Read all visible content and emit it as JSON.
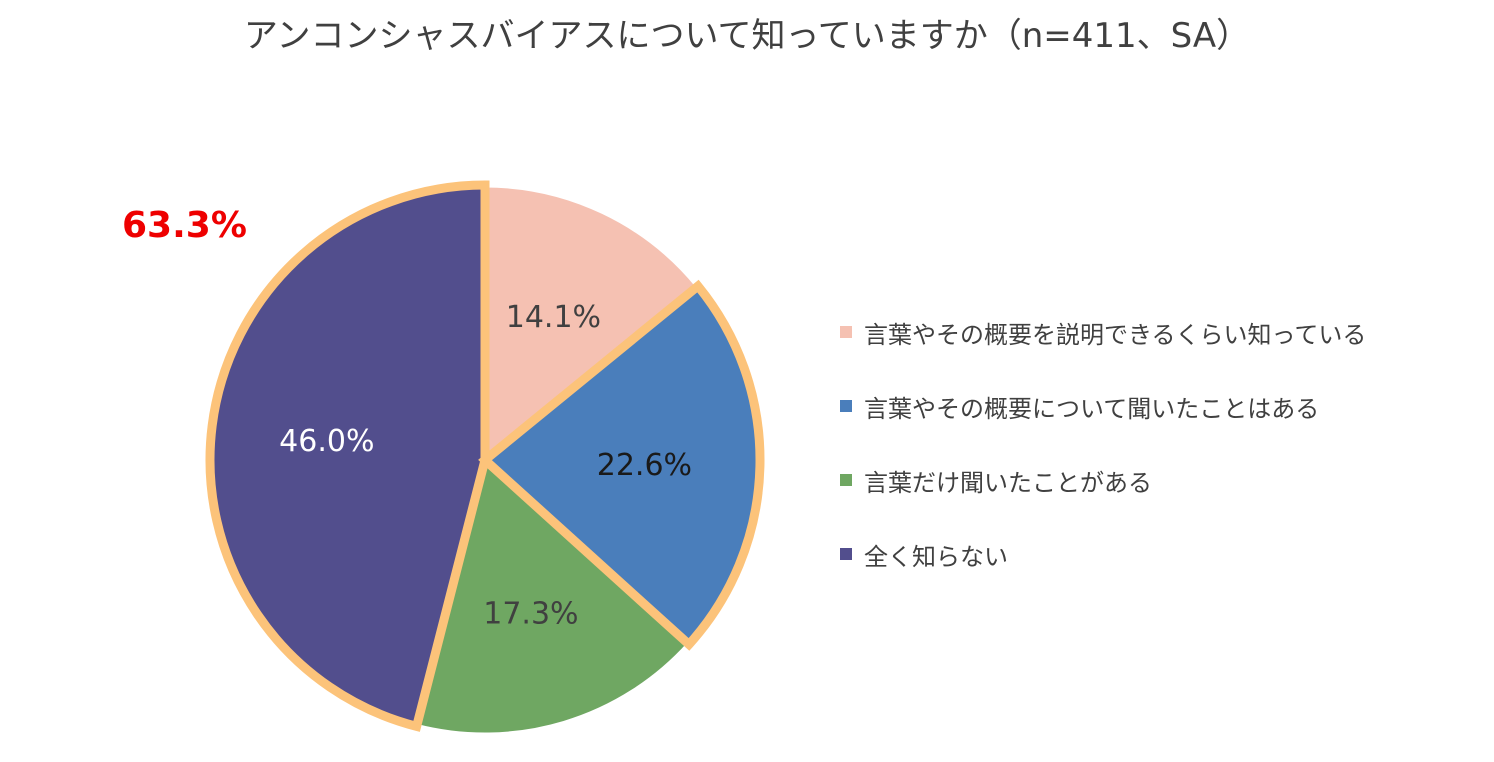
{
  "chart_data": {
    "type": "pie",
    "title": "アンコンシャスバイアスについて知っていますか（n=411、SA）",
    "highlight_label": "63.3%",
    "slices": [
      {
        "name": "言葉やその概要を説明できるくらい知っている",
        "value": 14.1,
        "label": "14.1%",
        "color": "#f5c1b2",
        "label_color": "#404040",
        "highlight": false
      },
      {
        "name": "言葉やその概要について聞いたことはある",
        "value": 22.6,
        "label": "22.6%",
        "color": "#4a7ebb",
        "label_color": "#1a1a1a",
        "highlight": true
      },
      {
        "name": "言葉だけ聞いたことがある",
        "value": 17.3,
        "label": "17.3%",
        "color": "#6fa762",
        "label_color": "#404040",
        "highlight": false
      },
      {
        "name": "全く知らない",
        "value": 46.0,
        "label": "46.0%",
        "color": "#524e8d",
        "label_color": "#ffffff",
        "highlight": true
      }
    ],
    "highlight_color": "#fcc37a",
    "legend_placement": "right"
  }
}
